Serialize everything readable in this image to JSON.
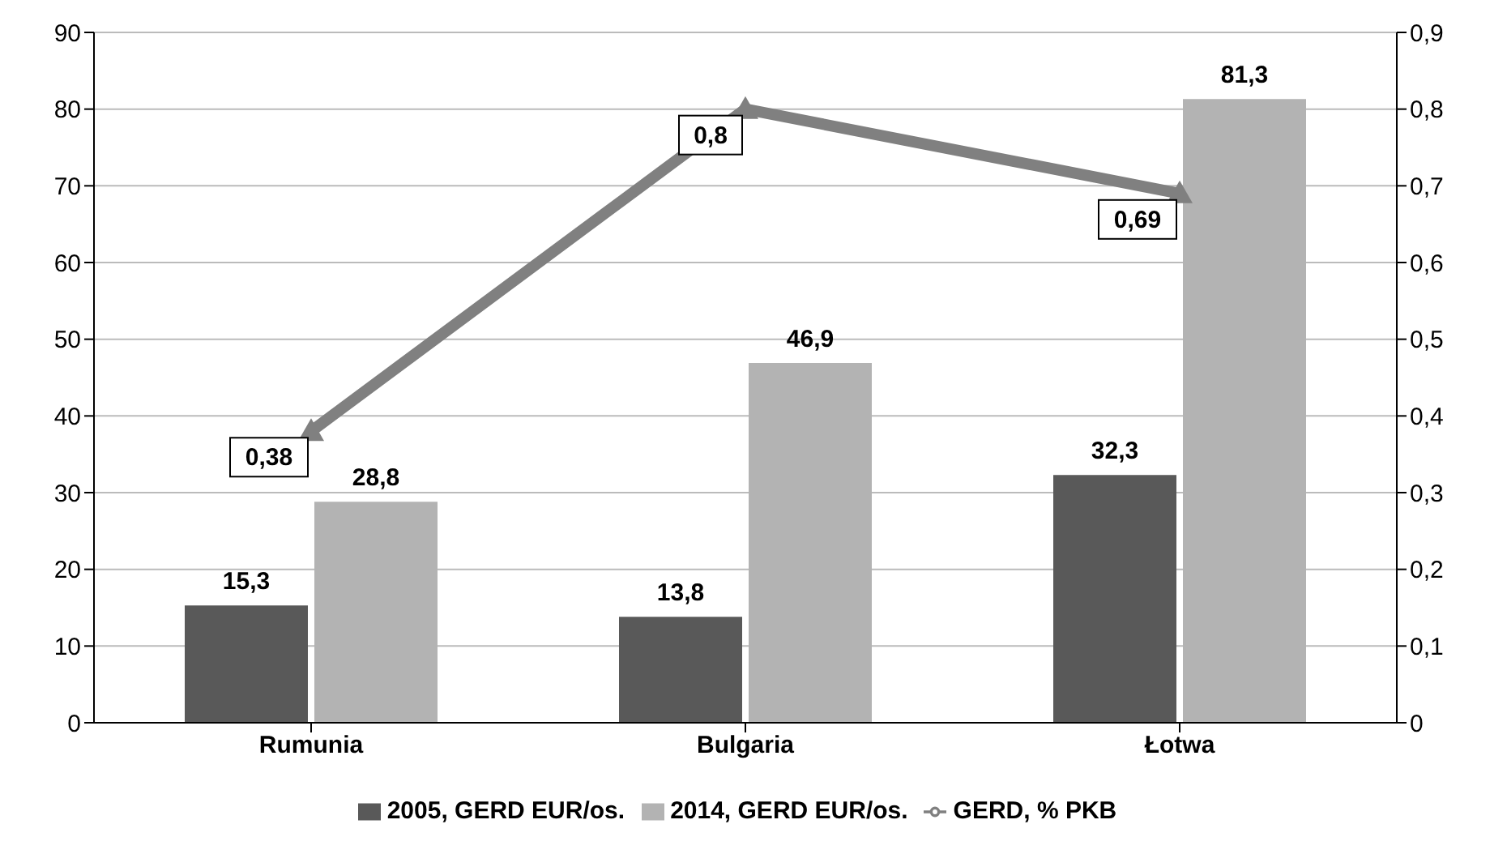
{
  "chart_data": {
    "type": "bar",
    "categories": [
      "Rumunia",
      "Bulgaria",
      "Łotwa"
    ],
    "series": [
      {
        "name": "2005, GERD EUR/os.",
        "color": "#595959",
        "values": [
          15.3,
          13.8,
          32.3
        ],
        "value_labels": [
          "15,3",
          "13,8",
          "32,3"
        ]
      },
      {
        "name": "2014, GERD EUR/os.",
        "color": "#b3b3b3",
        "values": [
          28.8,
          46.9,
          81.3
        ],
        "value_labels": [
          "28,8",
          "46,9",
          "81,3"
        ]
      },
      {
        "name": "GERD, % PKB",
        "type": "line",
        "axis": "y2",
        "color": "#808080",
        "marker": "triangle",
        "values": [
          0.38,
          0.8,
          0.69
        ],
        "value_labels": [
          "0,38",
          "0,8",
          "0,69"
        ]
      }
    ],
    "ylim": [
      0,
      90
    ],
    "yticks": [
      0,
      10,
      20,
      30,
      40,
      50,
      60,
      70,
      80,
      90
    ],
    "y2lim": [
      0,
      0.9
    ],
    "y2ticks": [
      0,
      {
        "value": 0.1,
        "label": "0,1"
      },
      {
        "value": 0.2,
        "label": "0,2"
      },
      {
        "value": 0.3,
        "label": "0,3"
      },
      {
        "value": 0.4,
        "label": "0,4"
      },
      {
        "value": 0.5,
        "label": "0,5"
      },
      {
        "value": 0.6,
        "label": "0,6"
      },
      {
        "value": 0.7,
        "label": "0,7"
      },
      {
        "value": 0.8,
        "label": "0,8"
      },
      {
        "value": 0.9,
        "label": "0,9"
      }
    ],
    "grid": "y",
    "legend": "bottom"
  }
}
